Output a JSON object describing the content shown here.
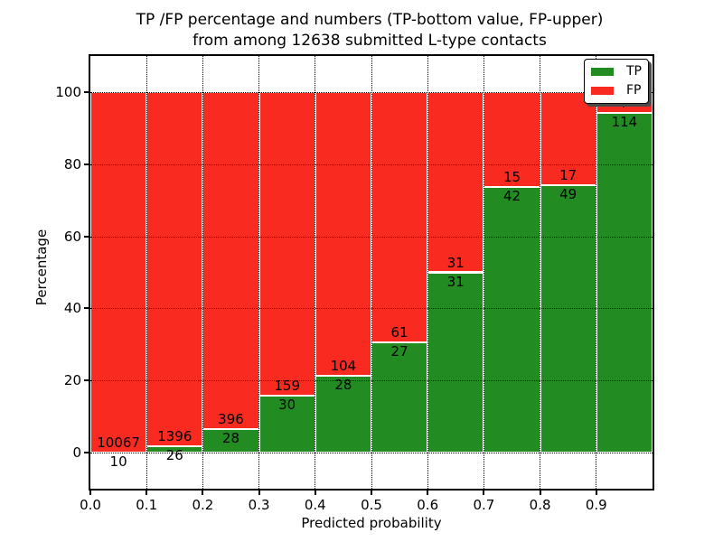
{
  "title": {
    "line1": "TP /FP percentage and numbers (TP-bottom value, FP-upper)",
    "line2": "from among 12638 submitted L-type contacts"
  },
  "axes": {
    "xlabel": "Predicted probability",
    "ylabel": "Percentage",
    "xtick_labels": [
      "0.0",
      "0.1",
      "0.2",
      "0.3",
      "0.4",
      "0.5",
      "0.6",
      "0.7",
      "0.8",
      "0.9"
    ],
    "ytick_values": [
      0,
      20,
      40,
      60,
      80,
      100
    ],
    "xlim": [
      0,
      1.0
    ],
    "ylim": [
      -10,
      110
    ],
    "grid_style": "dotted"
  },
  "legend": {
    "position": "upper-right",
    "items": [
      {
        "label": "TP",
        "color": "#228b22"
      },
      {
        "label": "FP",
        "color": "#f92a1f"
      }
    ]
  },
  "chart_data": {
    "type": "bar",
    "stacked": true,
    "units": "percent of bin total",
    "total_submitted": 12638,
    "bin_width": 0.1,
    "colors": {
      "tp": "#228b22",
      "fp": "#f92a1f",
      "edge": "#ffffff"
    },
    "bins": [
      {
        "range_start": 0.0,
        "tp": 10,
        "fp": 10067
      },
      {
        "range_start": 0.1,
        "tp": 26,
        "fp": 1396
      },
      {
        "range_start": 0.2,
        "tp": 28,
        "fp": 396
      },
      {
        "range_start": 0.3,
        "tp": 30,
        "fp": 159
      },
      {
        "range_start": 0.4,
        "tp": 28,
        "fp": 104
      },
      {
        "range_start": 0.5,
        "tp": 27,
        "fp": 61
      },
      {
        "range_start": 0.6,
        "tp": 31,
        "fp": 31
      },
      {
        "range_start": 0.7,
        "tp": 42,
        "fp": 15
      },
      {
        "range_start": 0.8,
        "tp": 49,
        "fp": 17
      },
      {
        "range_start": 0.9,
        "tp": 114,
        "fp": 7
      }
    ]
  }
}
